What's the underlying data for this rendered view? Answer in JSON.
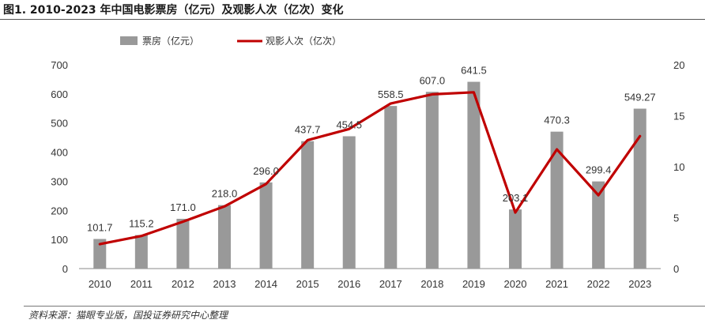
{
  "figure": {
    "title": "图1. 2010-2023 年中国电影票房（亿元）及观影人次（亿次）变化",
    "source": "资料来源：猫眼专业版，国投证券研究中心整理"
  },
  "chart_data": {
    "type": "bar+line",
    "categories": [
      "2010",
      "2011",
      "2012",
      "2013",
      "2014",
      "2015",
      "2016",
      "2017",
      "2018",
      "2019",
      "2020",
      "2021",
      "2022",
      "2023"
    ],
    "series": [
      {
        "name": "票房（亿元）",
        "type": "bar",
        "axis": "left",
        "color": "#999999",
        "values": [
          101.7,
          115.2,
          171.0,
          218.0,
          296.0,
          437.7,
          454.5,
          558.5,
          607.0,
          641.5,
          203.1,
          470.3,
          299.4,
          549.27
        ],
        "labels": [
          "101.7",
          "115.2",
          "171.0",
          "218.0",
          "296.0",
          "437.7",
          "454.5",
          "558.5",
          "607.0",
          "641.5",
          "203.1",
          "470.3",
          "299.4",
          "549.27"
        ]
      },
      {
        "name": "观影人次（亿次）",
        "type": "line",
        "axis": "right",
        "color": "#c00000",
        "values": [
          2.4,
          3.2,
          4.6,
          6.1,
          8.3,
          12.6,
          13.7,
          16.2,
          17.1,
          17.3,
          5.5,
          11.7,
          7.2,
          13.0
        ]
      }
    ],
    "left_axis": {
      "min": 0,
      "max": 700,
      "ticks": [
        "0",
        "100",
        "200",
        "300",
        "400",
        "500",
        "600",
        "700"
      ]
    },
    "right_axis": {
      "min": 0,
      "max": 20,
      "ticks": [
        "0",
        "5",
        "10",
        "15",
        "20"
      ]
    },
    "legend": {
      "placement": "top-left"
    }
  }
}
